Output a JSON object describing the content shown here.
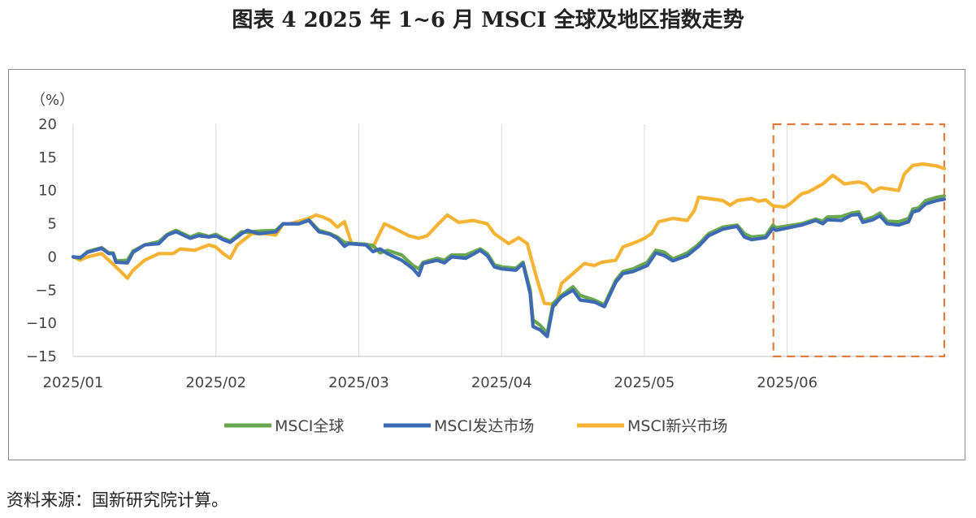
{
  "title": "图表 4  2025 年 1~6 月 MSCI 全球及地区指数走势",
  "source": "资料来源：国新研究院计算。",
  "chart_data": {
    "type": "line",
    "unit_label": "（%）",
    "ylim": [
      -15,
      20
    ],
    "yticks": [
      20,
      15,
      10,
      5,
      0,
      -5,
      -10,
      -15
    ],
    "xticks": [
      "2025/01",
      "2025/02",
      "2025/03",
      "2025/04",
      "2025/05",
      "2025/06"
    ],
    "grid": "vertical",
    "legend": "bottom",
    "highlight": {
      "style": "dashed-box",
      "color": "#e07b3c",
      "x_start": "2025/06",
      "x_end": "end"
    },
    "series": [
      {
        "name": "MSCI全球",
        "color": "#6aa84f",
        "points": [
          [
            0,
            0
          ],
          [
            0.05,
            -0.2
          ],
          [
            0.1,
            0.8
          ],
          [
            0.2,
            1.4
          ],
          [
            0.25,
            0.6
          ],
          [
            0.28,
            0.6
          ],
          [
            0.3,
            -0.6
          ],
          [
            0.38,
            -0.5
          ],
          [
            0.42,
            0.9
          ],
          [
            0.5,
            1.8
          ],
          [
            0.6,
            2.3
          ],
          [
            0.66,
            3.4
          ],
          [
            0.72,
            4.0
          ],
          [
            0.82,
            3.0
          ],
          [
            0.88,
            3.5
          ],
          [
            0.95,
            3.1
          ],
          [
            1.0,
            3.4
          ],
          [
            1.05,
            2.8
          ],
          [
            1.1,
            2.4
          ],
          [
            1.18,
            3.8
          ],
          [
            1.22,
            3.7
          ],
          [
            1.3,
            3.9
          ],
          [
            1.42,
            4.0
          ],
          [
            1.47,
            5.0
          ],
          [
            1.58,
            5.0
          ],
          [
            1.65,
            5.6
          ],
          [
            1.72,
            4.0
          ],
          [
            1.8,
            3.5
          ],
          [
            1.85,
            3.0
          ],
          [
            1.9,
            2.2
          ],
          [
            1.93,
            2.1
          ],
          [
            2.05,
            1.9
          ],
          [
            2.1,
            1.7
          ],
          [
            2.15,
            0.6
          ],
          [
            2.2,
            1.0
          ],
          [
            2.3,
            0.3
          ],
          [
            2.38,
            -1.3
          ],
          [
            2.42,
            -1.8
          ],
          [
            2.45,
            -0.8
          ],
          [
            2.55,
            -0.2
          ],
          [
            2.6,
            -0.5
          ],
          [
            2.65,
            0.3
          ],
          [
            2.75,
            0.3
          ],
          [
            2.85,
            1.2
          ],
          [
            2.9,
            0.5
          ],
          [
            2.95,
            -1.2
          ],
          [
            3.0,
            -1.5
          ],
          [
            3.1,
            -1.7
          ],
          [
            3.15,
            -0.8
          ],
          [
            3.2,
            -5.0
          ],
          [
            3.22,
            -9.5
          ],
          [
            3.27,
            -10.3
          ],
          [
            3.32,
            -11.5
          ],
          [
            3.36,
            -7.0
          ],
          [
            3.42,
            -5.8
          ],
          [
            3.5,
            -4.5
          ],
          [
            3.55,
            -5.8
          ],
          [
            3.65,
            -6.5
          ],
          [
            3.72,
            -7.2
          ],
          [
            3.8,
            -3.5
          ],
          [
            3.85,
            -2.2
          ],
          [
            3.92,
            -1.8
          ],
          [
            4.02,
            -0.8
          ],
          [
            4.08,
            1.0
          ],
          [
            4.14,
            0.7
          ],
          [
            4.2,
            -0.3
          ],
          [
            4.3,
            0.6
          ],
          [
            4.38,
            1.9
          ],
          [
            4.45,
            3.5
          ],
          [
            4.55,
            4.5
          ],
          [
            4.65,
            4.8
          ],
          [
            4.7,
            3.5
          ],
          [
            4.75,
            3.0
          ],
          [
            4.85,
            3.2
          ],
          [
            4.9,
            4.8
          ],
          [
            4.92,
            4.4
          ],
          [
            5.1,
            5.0
          ],
          [
            5.2,
            5.7
          ],
          [
            5.25,
            5.4
          ],
          [
            5.28,
            6.0
          ],
          [
            5.38,
            6.1
          ],
          [
            5.45,
            6.6
          ],
          [
            5.5,
            6.8
          ],
          [
            5.53,
            5.5
          ],
          [
            5.6,
            6.0
          ],
          [
            5.65,
            6.6
          ],
          [
            5.7,
            5.4
          ],
          [
            5.78,
            5.3
          ],
          [
            5.85,
            5.8
          ],
          [
            5.88,
            7.2
          ],
          [
            5.92,
            7.4
          ],
          [
            5.97,
            8.5
          ],
          [
            6.05,
            9.0
          ],
          [
            6.1,
            9.2
          ]
        ]
      },
      {
        "name": "MSCI发达市场",
        "color": "#3d6ab3",
        "points": [
          [
            0,
            0
          ],
          [
            0.05,
            -0.1
          ],
          [
            0.1,
            0.7
          ],
          [
            0.2,
            1.3
          ],
          [
            0.25,
            0.5
          ],
          [
            0.28,
            0.5
          ],
          [
            0.3,
            -0.8
          ],
          [
            0.38,
            -0.9
          ],
          [
            0.42,
            0.7
          ],
          [
            0.5,
            1.8
          ],
          [
            0.6,
            2.0
          ],
          [
            0.66,
            3.3
          ],
          [
            0.72,
            3.8
          ],
          [
            0.82,
            2.8
          ],
          [
            0.88,
            3.2
          ],
          [
            0.95,
            3.0
          ],
          [
            1.0,
            3.2
          ],
          [
            1.05,
            2.6
          ],
          [
            1.1,
            2.2
          ],
          [
            1.18,
            3.5
          ],
          [
            1.22,
            4.0
          ],
          [
            1.3,
            3.5
          ],
          [
            1.42,
            3.8
          ],
          [
            1.47,
            5.0
          ],
          [
            1.58,
            5.0
          ],
          [
            1.65,
            5.5
          ],
          [
            1.72,
            3.8
          ],
          [
            1.8,
            3.4
          ],
          [
            1.85,
            2.8
          ],
          [
            1.9,
            1.6
          ],
          [
            1.93,
            2.0
          ],
          [
            2.05,
            1.8
          ],
          [
            2.1,
            0.8
          ],
          [
            2.15,
            1.2
          ],
          [
            2.2,
            0.5
          ],
          [
            2.3,
            -0.5
          ],
          [
            2.38,
            -1.8
          ],
          [
            2.42,
            -2.8
          ],
          [
            2.45,
            -1.0
          ],
          [
            2.55,
            -0.5
          ],
          [
            2.6,
            -0.9
          ],
          [
            2.65,
            0.0
          ],
          [
            2.75,
            -0.2
          ],
          [
            2.85,
            1.0
          ],
          [
            2.9,
            0.2
          ],
          [
            2.95,
            -1.5
          ],
          [
            3.0,
            -1.8
          ],
          [
            3.1,
            -2.0
          ],
          [
            3.15,
            -1.0
          ],
          [
            3.2,
            -5.5
          ],
          [
            3.22,
            -10.5
          ],
          [
            3.27,
            -11.0
          ],
          [
            3.32,
            -12.0
          ],
          [
            3.36,
            -7.5
          ],
          [
            3.42,
            -6.0
          ],
          [
            3.5,
            -5.0
          ],
          [
            3.55,
            -6.5
          ],
          [
            3.65,
            -6.8
          ],
          [
            3.72,
            -7.5
          ],
          [
            3.8,
            -3.8
          ],
          [
            3.85,
            -2.5
          ],
          [
            3.92,
            -2.2
          ],
          [
            4.02,
            -1.3
          ],
          [
            4.08,
            0.6
          ],
          [
            4.14,
            0.2
          ],
          [
            4.2,
            -0.6
          ],
          [
            4.3,
            0.2
          ],
          [
            4.38,
            1.6
          ],
          [
            4.45,
            3.2
          ],
          [
            4.55,
            4.2
          ],
          [
            4.65,
            4.6
          ],
          [
            4.7,
            3.0
          ],
          [
            4.75,
            2.6
          ],
          [
            4.85,
            2.9
          ],
          [
            4.9,
            4.3
          ],
          [
            4.92,
            4.0
          ],
          [
            5.1,
            4.8
          ],
          [
            5.2,
            5.5
          ],
          [
            5.25,
            5.0
          ],
          [
            5.28,
            5.6
          ],
          [
            5.38,
            5.5
          ],
          [
            5.45,
            6.3
          ],
          [
            5.5,
            6.4
          ],
          [
            5.53,
            5.2
          ],
          [
            5.6,
            5.6
          ],
          [
            5.65,
            6.2
          ],
          [
            5.7,
            5.0
          ],
          [
            5.78,
            4.8
          ],
          [
            5.85,
            5.3
          ],
          [
            5.88,
            6.8
          ],
          [
            5.92,
            7.0
          ],
          [
            5.97,
            8.0
          ],
          [
            6.05,
            8.5
          ],
          [
            6.1,
            8.7
          ]
        ]
      },
      {
        "name": "MSCI新兴市场",
        "color": "#f5b335",
        "points": [
          [
            0,
            0
          ],
          [
            0.05,
            -0.5
          ],
          [
            0.1,
            0.0
          ],
          [
            0.2,
            0.5
          ],
          [
            0.25,
            -0.5
          ],
          [
            0.3,
            -1.5
          ],
          [
            0.38,
            -3.2
          ],
          [
            0.42,
            -2.0
          ],
          [
            0.5,
            -0.5
          ],
          [
            0.6,
            0.5
          ],
          [
            0.7,
            0.5
          ],
          [
            0.75,
            1.2
          ],
          [
            0.85,
            1.0
          ],
          [
            0.95,
            1.8
          ],
          [
            1.0,
            1.5
          ],
          [
            1.05,
            0.5
          ],
          [
            1.1,
            -0.2
          ],
          [
            1.15,
            1.8
          ],
          [
            1.25,
            3.5
          ],
          [
            1.35,
            3.5
          ],
          [
            1.42,
            3.3
          ],
          [
            1.47,
            5.0
          ],
          [
            1.52,
            5.0
          ],
          [
            1.6,
            5.5
          ],
          [
            1.65,
            5.8
          ],
          [
            1.7,
            6.3
          ],
          [
            1.75,
            6.0
          ],
          [
            1.8,
            5.5
          ],
          [
            1.85,
            4.5
          ],
          [
            1.9,
            5.3
          ],
          [
            1.95,
            2.0
          ],
          [
            2.05,
            1.8
          ],
          [
            2.1,
            1.5
          ],
          [
            2.18,
            5.0
          ],
          [
            2.25,
            4.3
          ],
          [
            2.35,
            3.2
          ],
          [
            2.42,
            2.8
          ],
          [
            2.48,
            3.2
          ],
          [
            2.55,
            4.8
          ],
          [
            2.62,
            6.3
          ],
          [
            2.7,
            5.2
          ],
          [
            2.8,
            5.5
          ],
          [
            2.9,
            5.0
          ],
          [
            2.95,
            3.5
          ],
          [
            3.05,
            2.0
          ],
          [
            3.12,
            2.9
          ],
          [
            3.18,
            2.0
          ],
          [
            3.25,
            -3.5
          ],
          [
            3.3,
            -7.0
          ],
          [
            3.38,
            -7.2
          ],
          [
            3.42,
            -4.0
          ],
          [
            3.5,
            -2.5
          ],
          [
            3.58,
            -1.0
          ],
          [
            3.65,
            -1.3
          ],
          [
            3.7,
            -0.8
          ],
          [
            3.8,
            -0.5
          ],
          [
            3.85,
            1.5
          ],
          [
            3.95,
            2.3
          ],
          [
            4.0,
            2.8
          ],
          [
            4.05,
            3.5
          ],
          [
            4.1,
            5.3
          ],
          [
            4.2,
            5.8
          ],
          [
            4.3,
            5.5
          ],
          [
            4.35,
            7.0
          ],
          [
            4.38,
            9.0
          ],
          [
            4.45,
            8.8
          ],
          [
            4.55,
            8.5
          ],
          [
            4.6,
            7.8
          ],
          [
            4.65,
            8.5
          ],
          [
            4.75,
            8.8
          ],
          [
            4.8,
            8.4
          ],
          [
            4.85,
            8.6
          ],
          [
            4.9,
            7.7
          ],
          [
            4.98,
            7.5
          ],
          [
            5.02,
            8.0
          ],
          [
            5.1,
            9.5
          ],
          [
            5.15,
            9.8
          ],
          [
            5.25,
            11.0
          ],
          [
            5.32,
            12.3
          ],
          [
            5.4,
            11.0
          ],
          [
            5.5,
            11.3
          ],
          [
            5.55,
            11.0
          ],
          [
            5.6,
            9.8
          ],
          [
            5.65,
            10.4
          ],
          [
            5.7,
            10.3
          ],
          [
            5.78,
            10.0
          ],
          [
            5.82,
            12.5
          ],
          [
            5.88,
            13.8
          ],
          [
            5.95,
            14.0
          ],
          [
            6.05,
            13.7
          ],
          [
            6.1,
            13.3
          ]
        ]
      }
    ]
  }
}
